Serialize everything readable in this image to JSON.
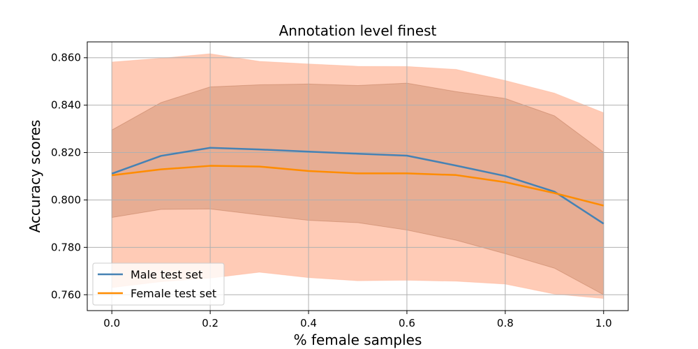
{
  "chart_data": {
    "type": "line",
    "title": "Annotation level finest",
    "xlabel": "% female samples",
    "ylabel": "Accuracy scores",
    "xlim": [
      -0.05,
      1.05
    ],
    "ylim": [
      0.7533,
      0.8667
    ],
    "xticks": [
      0.0,
      0.2,
      0.4,
      0.6,
      0.8,
      1.0
    ],
    "xtick_labels": [
      "0.0",
      "0.2",
      "0.4",
      "0.6",
      "0.8",
      "1.0"
    ],
    "yticks": [
      0.76,
      0.78,
      0.8,
      0.82,
      0.84,
      0.86
    ],
    "ytick_labels": [
      "0.760",
      "0.780",
      "0.800",
      "0.820",
      "0.840",
      "0.860"
    ],
    "grid": true,
    "legend_position": "lower-left",
    "x": [
      0.0,
      0.1,
      0.2,
      0.3,
      0.4,
      0.5,
      0.6,
      0.7,
      0.8,
      0.9,
      1.0
    ],
    "series": [
      {
        "name": "Male test set",
        "color": "#4682b4",
        "band_color": "#a0522d",
        "values": [
          0.8111,
          0.8186,
          0.822,
          0.8213,
          0.8204,
          0.8195,
          0.8187,
          0.8145,
          0.8101,
          0.8035,
          0.79
        ],
        "upper": [
          0.8295,
          0.8411,
          0.8477,
          0.8486,
          0.8489,
          0.8483,
          0.8493,
          0.8457,
          0.8428,
          0.8355,
          0.8201
        ],
        "lower": [
          0.7926,
          0.796,
          0.7962,
          0.7937,
          0.7914,
          0.7904,
          0.7873,
          0.783,
          0.7773,
          0.7712,
          0.76
        ]
      },
      {
        "name": "Female test set",
        "color": "#ff8c00",
        "band_color": "#ffa07a",
        "values": [
          0.8104,
          0.8129,
          0.8144,
          0.8141,
          0.8122,
          0.8112,
          0.8112,
          0.8105,
          0.8075,
          0.8029,
          0.7976
        ],
        "upper": [
          0.8582,
          0.8598,
          0.8617,
          0.8585,
          0.8574,
          0.8564,
          0.8563,
          0.8551,
          0.8504,
          0.8451,
          0.8368
        ],
        "lower": [
          0.763,
          0.7655,
          0.767,
          0.7695,
          0.7672,
          0.7659,
          0.7661,
          0.7657,
          0.7645,
          0.7603,
          0.7584
        ]
      }
    ]
  }
}
